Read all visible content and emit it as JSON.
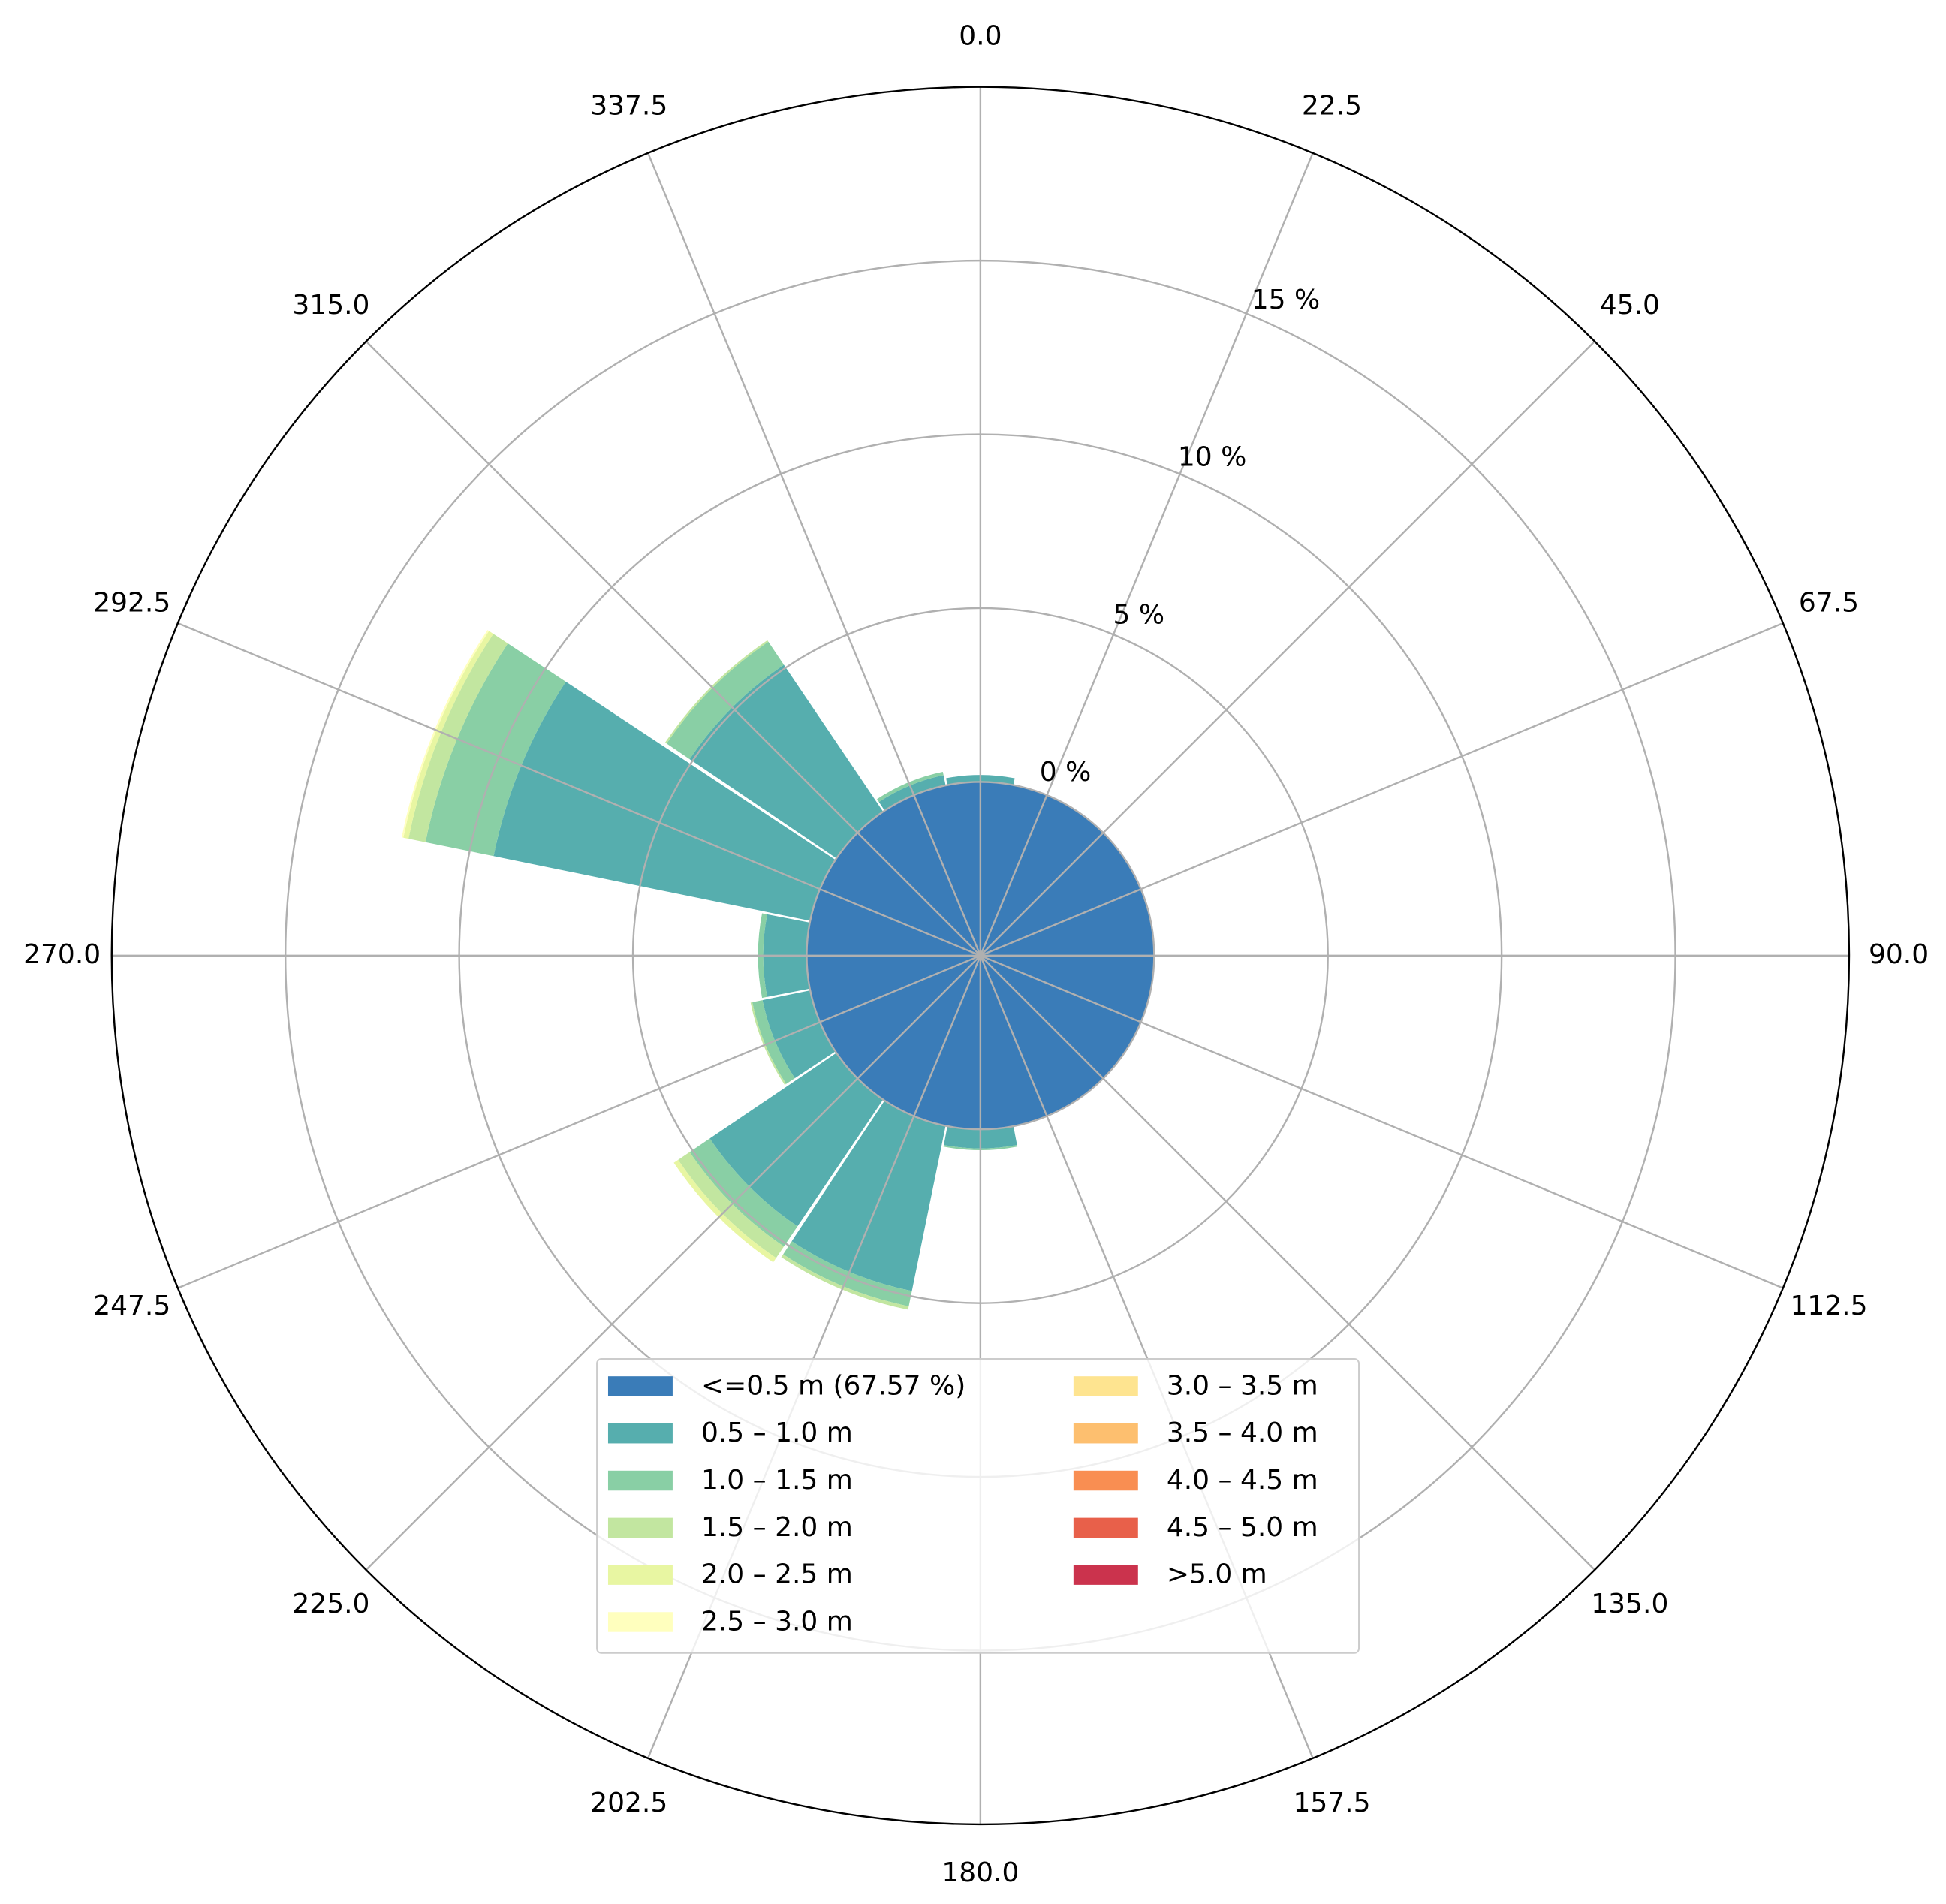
{
  "chart_data": {
    "type": "windrose",
    "categories": [
      "0.0",
      "22.5",
      "45.0",
      "67.5",
      "90.0",
      "112.5",
      "135.0",
      "157.5",
      "180.0",
      "202.5",
      "225.0",
      "247.5",
      "270.0",
      "292.5",
      "315.0",
      "337.5"
    ],
    "ylim": [
      -5,
      20
    ],
    "yticks": [
      {
        "value": 0,
        "label": "0 %"
      },
      {
        "value": 5,
        "label": "5 %"
      },
      {
        "value": 10,
        "label": "10 %"
      },
      {
        "value": 15,
        "label": "15 %"
      }
    ],
    "grid": true,
    "legend": "lower center",
    "series": [
      {
        "name": "<=0.5 m (67.57 %)",
        "color": "#3a7cb8",
        "values": [
          0,
          0,
          0,
          0,
          0,
          0,
          0,
          0,
          0,
          0,
          0,
          0,
          0,
          0,
          0,
          0
        ]
      },
      {
        "name": "0.5 – 1.0 m",
        "color": "#56aeae",
        "values": [
          0.2,
          0,
          0,
          0,
          0,
          0,
          0,
          0,
          0.55,
          4.85,
          4.4,
          1.4,
          1.25,
          9.3,
          5.1,
          0.3
        ]
      },
      {
        "name": "1.0 – 1.5 m",
        "color": "#89cfa5",
        "values": [
          0,
          0,
          0,
          0,
          0,
          0,
          0,
          0,
          0.05,
          0.45,
          0.7,
          0.3,
          0.15,
          2.0,
          0.8,
          0.1
        ]
      },
      {
        "name": "1.5 – 2.0 m",
        "color": "#c2e6a0",
        "values": [
          0,
          0,
          0,
          0,
          0,
          0,
          0,
          0,
          0,
          0.1,
          0.4,
          0.05,
          0,
          0.5,
          0.05,
          0
        ]
      },
      {
        "name": "2.0 – 2.5 m",
        "color": "#e8f6a2",
        "values": [
          0,
          0,
          0,
          0,
          0,
          0,
          0,
          0,
          0,
          0,
          0.15,
          0,
          0,
          0.15,
          0,
          0
        ]
      },
      {
        "name": "2.5 – 3.0 m",
        "color": "#ffffbe",
        "values": [
          0,
          0,
          0,
          0,
          0,
          0,
          0,
          0,
          0,
          0,
          0,
          0,
          0,
          0.05,
          0,
          0
        ]
      },
      {
        "name": "3.0 – 3.5 m",
        "color": "#fee490",
        "values": [
          0,
          0,
          0,
          0,
          0,
          0,
          0,
          0,
          0,
          0,
          0,
          0,
          0,
          0,
          0,
          0
        ]
      },
      {
        "name": "3.5 – 4.0 m",
        "color": "#fdbf6f",
        "values": [
          0,
          0,
          0,
          0,
          0,
          0,
          0,
          0,
          0,
          0,
          0,
          0,
          0,
          0,
          0,
          0
        ]
      },
      {
        "name": "4.0 – 4.5 m",
        "color": "#f98e52",
        "values": [
          0,
          0,
          0,
          0,
          0,
          0,
          0,
          0,
          0,
          0,
          0,
          0,
          0,
          0,
          0,
          0
        ]
      },
      {
        "name": "4.5 – 5.0 m",
        "color": "#e8604a",
        "values": [
          0,
          0,
          0,
          0,
          0,
          0,
          0,
          0,
          0,
          0,
          0,
          0,
          0,
          0,
          0,
          0
        ]
      },
      {
        "name": ">5.0 m",
        "color": "#cb334d",
        "values": [
          0,
          0,
          0,
          0,
          0,
          0,
          0,
          0,
          0,
          0,
          0,
          0,
          0,
          0,
          0,
          0
        ]
      }
    ]
  }
}
